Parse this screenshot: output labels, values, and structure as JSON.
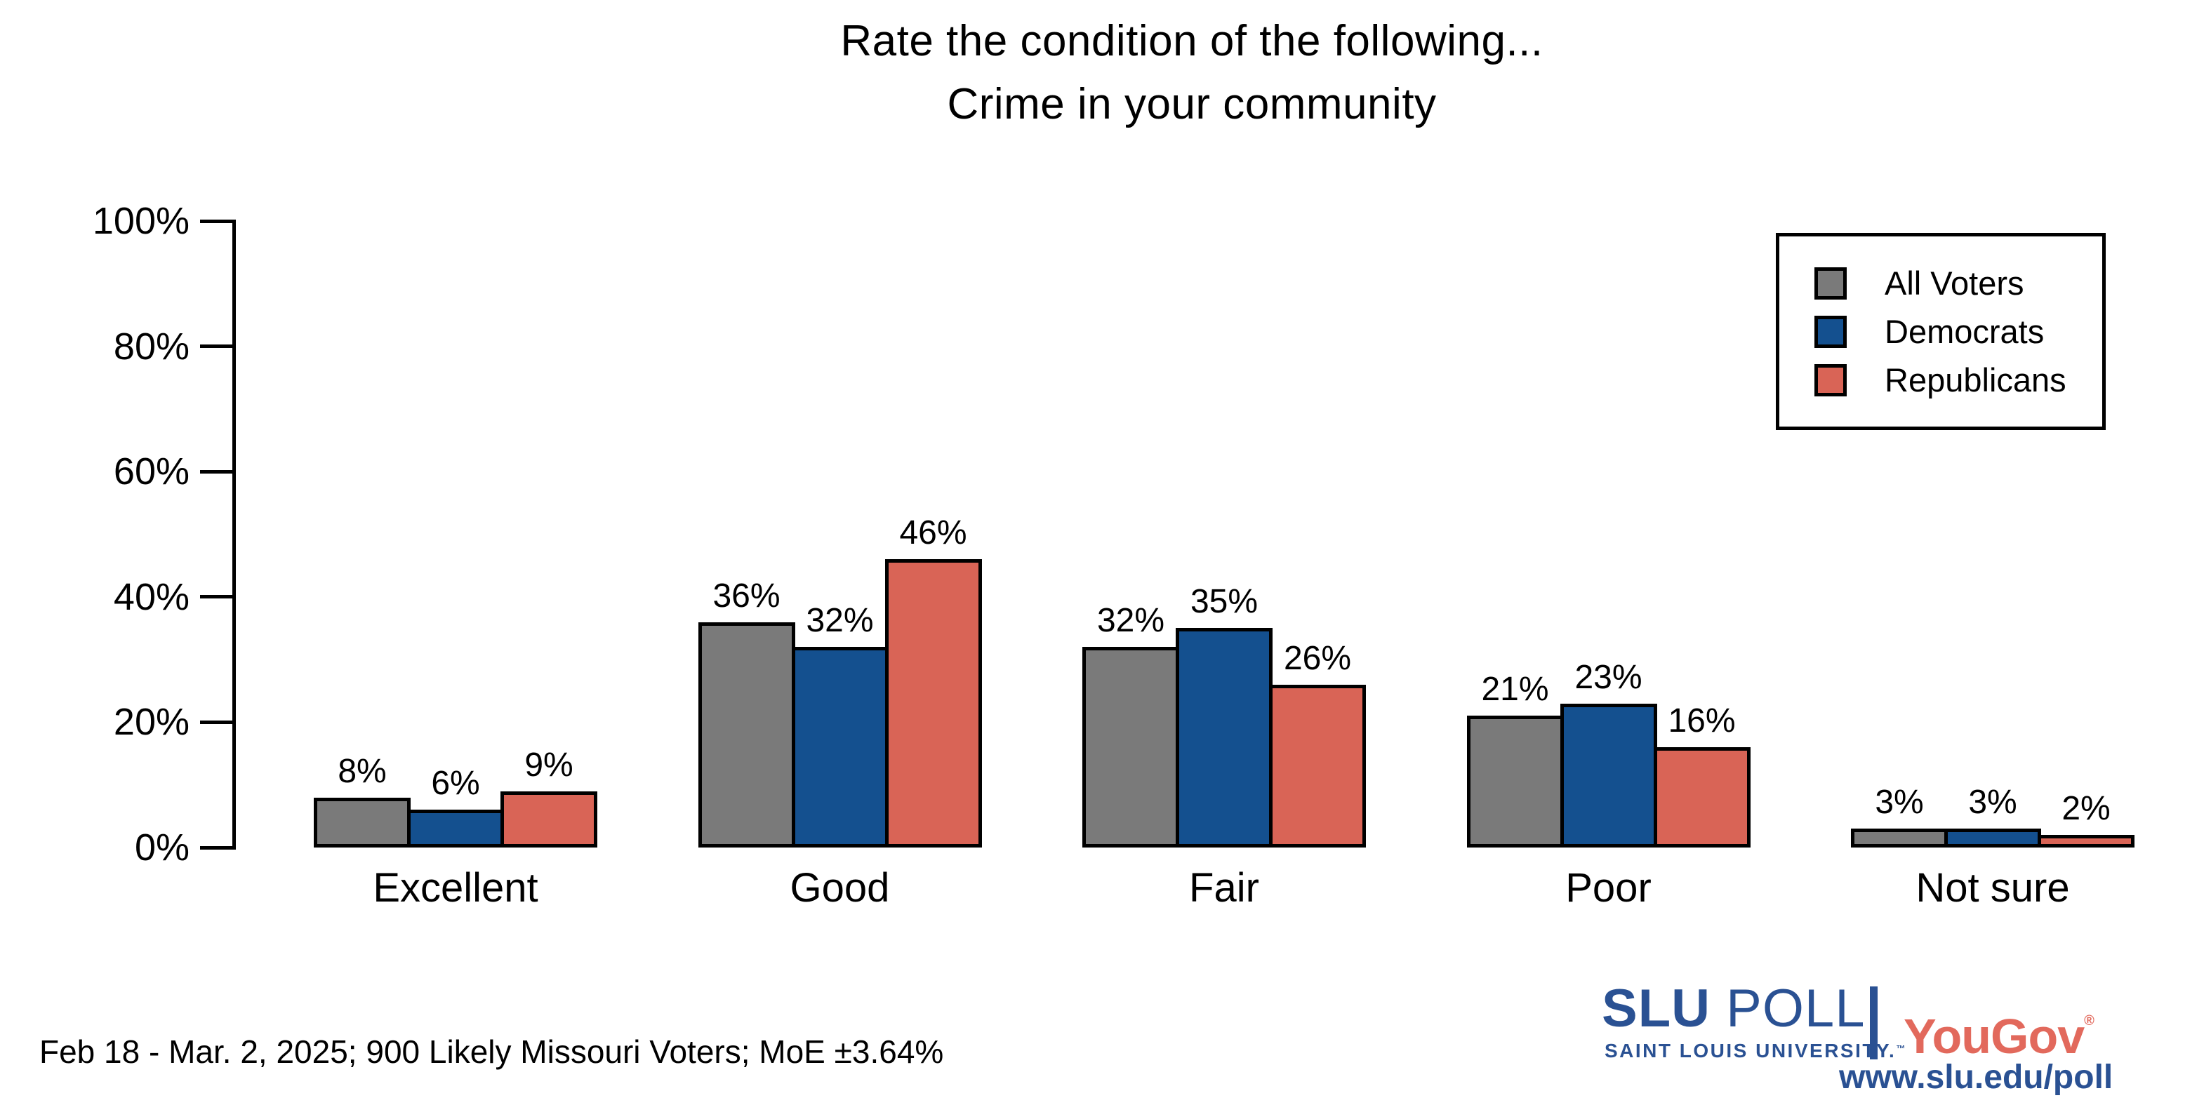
{
  "title": {
    "line1": "Rate the condition of the following...",
    "line2": "Crime in your community"
  },
  "chart_data": {
    "type": "bar",
    "title": "Rate the condition of the following... Crime in your community",
    "categories": [
      "Excellent",
      "Good",
      "Fair",
      "Poor",
      "Not sure"
    ],
    "series": [
      {
        "name": "All Voters",
        "color": "#7a7a7a",
        "values": [
          8,
          36,
          32,
          21,
          3
        ]
      },
      {
        "name": "Democrats",
        "color": "#14508f",
        "values": [
          6,
          32,
          35,
          23,
          3
        ]
      },
      {
        "name": "Republicans",
        "color": "#d96456",
        "values": [
          9,
          46,
          26,
          16,
          2
        ]
      }
    ],
    "value_label_suffix": "%",
    "y_axis": {
      "min": 0,
      "max": 100,
      "ticks": [
        0,
        20,
        40,
        60,
        80,
        100
      ],
      "tick_labels": [
        "0%",
        "20%",
        "40%",
        "60%",
        "80%",
        "100%"
      ]
    },
    "legend": {
      "position": "top-right",
      "entries": [
        "All Voters",
        "Democrats",
        "Republicans"
      ]
    },
    "grid": false,
    "bar_outline_color": "#000000",
    "xlabel": "",
    "ylabel": ""
  },
  "footer": {
    "source_note": "Feb 18 - Mar. 2, 2025; 900 Likely Missouri Voters; MoE ±3.64%"
  },
  "branding": {
    "slu": "SLU",
    "poll": "POLL",
    "tagline": "SAINT LOUIS UNIVERSITY.",
    "tagline_tm": "™",
    "yougov": "YouGov",
    "yougov_reg": "®",
    "url": "www.slu.edu/poll",
    "slu_blue": "#2a5193",
    "yougov_red": "#e2695c"
  }
}
